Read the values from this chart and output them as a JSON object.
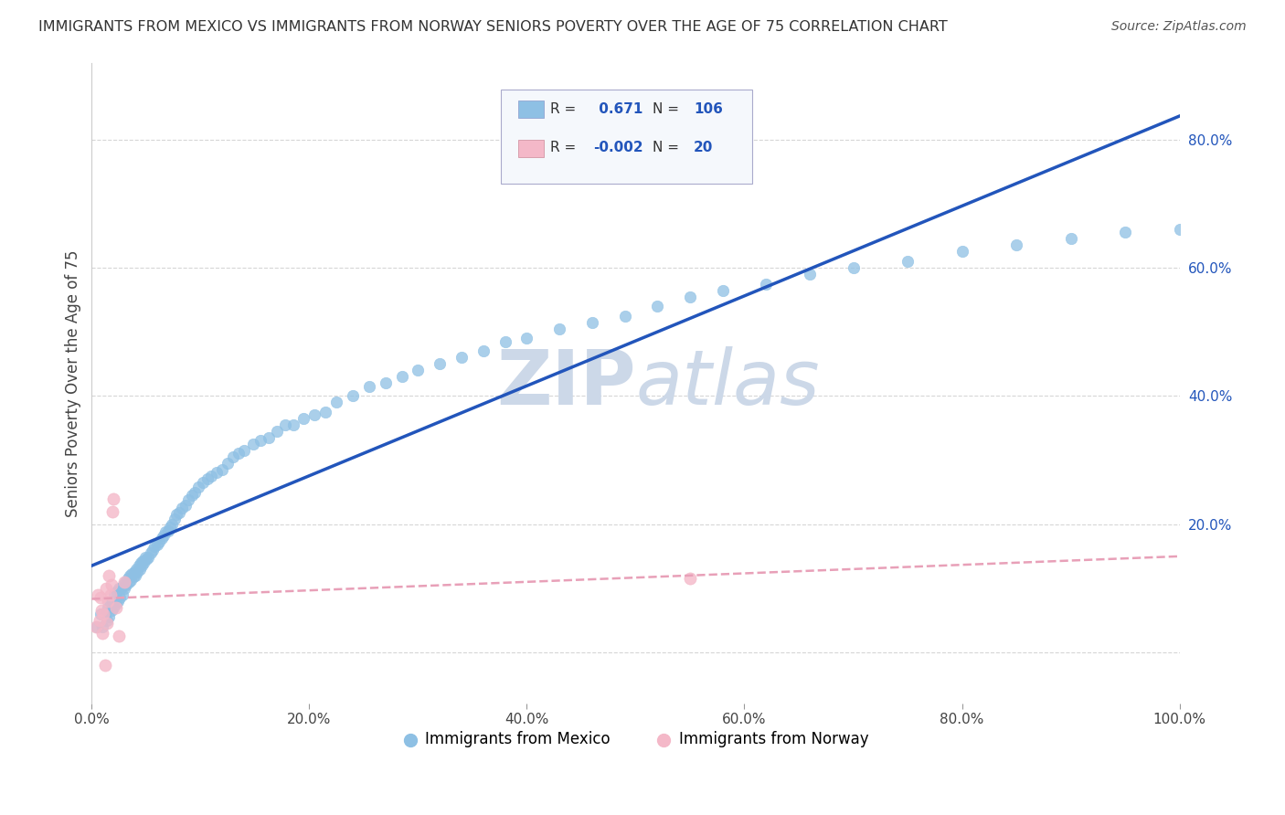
{
  "title": "IMMIGRANTS FROM MEXICO VS IMMIGRANTS FROM NORWAY SENIORS POVERTY OVER THE AGE OF 75 CORRELATION CHART",
  "source": "Source: ZipAtlas.com",
  "ylabel": "Seniors Poverty Over the Age of 75",
  "xlim": [
    0.0,
    1.0
  ],
  "ylim": [
    -0.08,
    0.92
  ],
  "xticks": [
    0.0,
    0.2,
    0.4,
    0.6,
    0.8,
    1.0
  ],
  "xticklabels": [
    "0.0%",
    "20.0%",
    "40.0%",
    "60.0%",
    "80.0%",
    "100.0%"
  ],
  "ytick_positions": [
    0.0,
    0.2,
    0.4,
    0.6,
    0.8
  ],
  "yticklabels": [
    "",
    "20.0%",
    "40.0%",
    "60.0%",
    "80.0%"
  ],
  "mexico_R": 0.671,
  "mexico_N": 106,
  "norway_R": -0.002,
  "norway_N": 20,
  "mexico_color": "#8ec0e4",
  "norway_color": "#f4b8c8",
  "mexico_line_color": "#2255bb",
  "norway_line_color": "#e8a0b8",
  "background_color": "#ffffff",
  "plot_bg_color": "#ffffff",
  "watermark_color": "#ccd8e8",
  "mexico_scatter_x": [
    0.005,
    0.008,
    0.01,
    0.012,
    0.014,
    0.015,
    0.016,
    0.017,
    0.018,
    0.019,
    0.02,
    0.021,
    0.022,
    0.023,
    0.024,
    0.025,
    0.026,
    0.027,
    0.028,
    0.029,
    0.03,
    0.031,
    0.032,
    0.033,
    0.034,
    0.035,
    0.036,
    0.037,
    0.038,
    0.039,
    0.04,
    0.041,
    0.042,
    0.043,
    0.044,
    0.045,
    0.046,
    0.047,
    0.048,
    0.049,
    0.05,
    0.052,
    0.054,
    0.056,
    0.058,
    0.06,
    0.062,
    0.064,
    0.066,
    0.068,
    0.07,
    0.072,
    0.074,
    0.076,
    0.078,
    0.08,
    0.083,
    0.086,
    0.089,
    0.092,
    0.095,
    0.098,
    0.102,
    0.106,
    0.11,
    0.115,
    0.12,
    0.125,
    0.13,
    0.135,
    0.14,
    0.148,
    0.155,
    0.163,
    0.17,
    0.178,
    0.185,
    0.195,
    0.205,
    0.215,
    0.225,
    0.24,
    0.255,
    0.27,
    0.285,
    0.3,
    0.32,
    0.34,
    0.36,
    0.38,
    0.4,
    0.43,
    0.46,
    0.49,
    0.52,
    0.55,
    0.58,
    0.62,
    0.66,
    0.7,
    0.75,
    0.8,
    0.85,
    0.9,
    0.95,
    1.0
  ],
  "mexico_scatter_y": [
    0.04,
    0.06,
    0.04,
    0.06,
    0.05,
    0.07,
    0.055,
    0.075,
    0.065,
    0.08,
    0.07,
    0.09,
    0.075,
    0.095,
    0.08,
    0.1,
    0.085,
    0.1,
    0.09,
    0.105,
    0.1,
    0.11,
    0.105,
    0.115,
    0.11,
    0.12,
    0.112,
    0.122,
    0.118,
    0.125,
    0.12,
    0.13,
    0.125,
    0.135,
    0.13,
    0.14,
    0.135,
    0.142,
    0.14,
    0.148,
    0.145,
    0.148,
    0.155,
    0.16,
    0.165,
    0.168,
    0.172,
    0.178,
    0.182,
    0.188,
    0.19,
    0.195,
    0.2,
    0.208,
    0.215,
    0.218,
    0.225,
    0.23,
    0.238,
    0.245,
    0.25,
    0.258,
    0.265,
    0.27,
    0.275,
    0.28,
    0.285,
    0.295,
    0.305,
    0.31,
    0.315,
    0.325,
    0.33,
    0.335,
    0.345,
    0.355,
    0.355,
    0.365,
    0.37,
    0.375,
    0.39,
    0.4,
    0.415,
    0.42,
    0.43,
    0.44,
    0.45,
    0.46,
    0.47,
    0.485,
    0.49,
    0.505,
    0.515,
    0.525,
    0.54,
    0.555,
    0.565,
    0.575,
    0.59,
    0.6,
    0.61,
    0.625,
    0.635,
    0.645,
    0.655,
    0.66
  ],
  "norway_scatter_x": [
    0.004,
    0.006,
    0.007,
    0.008,
    0.009,
    0.01,
    0.011,
    0.012,
    0.013,
    0.014,
    0.015,
    0.016,
    0.017,
    0.018,
    0.019,
    0.02,
    0.022,
    0.025,
    0.03,
    0.55
  ],
  "norway_scatter_y": [
    0.04,
    0.09,
    0.05,
    0.085,
    0.065,
    0.03,
    0.06,
    -0.02,
    0.1,
    0.045,
    0.08,
    0.12,
    0.09,
    0.105,
    0.22,
    0.24,
    0.07,
    0.025,
    0.11,
    0.115
  ]
}
